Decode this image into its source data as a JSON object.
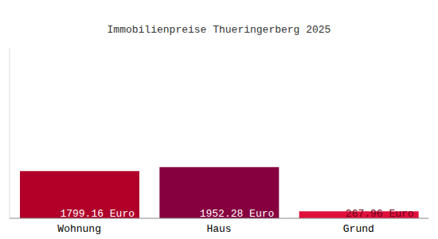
{
  "chart_data": {
    "type": "bar",
    "title": "Immobilienpreise Thueringerberg 2025",
    "categories": [
      "Wohnung",
      "Haus",
      "Grund"
    ],
    "values": [
      1799.16,
      1952.28,
      267.96
    ],
    "value_labels": [
      "1799.16 Euro",
      "1952.28 Euro",
      "267.96 Euro"
    ],
    "colors": [
      "#b0002a",
      "#860040",
      "#e0103c"
    ],
    "ylim": [
      0,
      6500
    ],
    "tick_labels": "x",
    "data_labels": true
  }
}
